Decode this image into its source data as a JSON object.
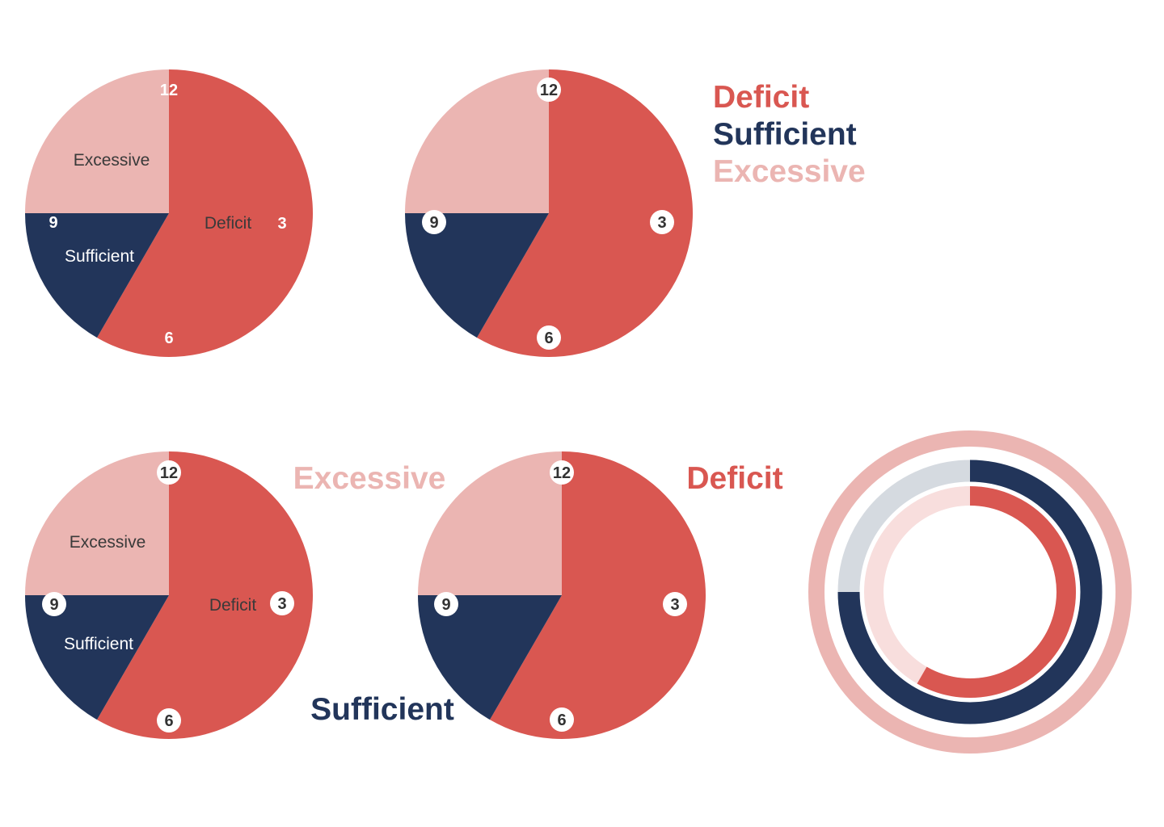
{
  "colors": {
    "deficit": "#D95751",
    "sufficient": "#22355A",
    "excessive": "#EBB5B2",
    "track_light": "#D5DAE0",
    "track_pink": "#F8DEDD",
    "label_dark": "#3A3A3A",
    "label_light": "#FFFFFF",
    "badge_bg": "#FFFFFF",
    "badge_text": "#333333"
  },
  "legend": {
    "deficit": "Deficit",
    "sufficient": "Sufficient",
    "excessive": "Excessive"
  },
  "clock_labels": [
    "12",
    "3",
    "6",
    "9"
  ],
  "chart_data": [
    {
      "type": "pie",
      "variant": "clock face with inside labels, plain clock numbers",
      "slices": [
        {
          "label": "Deficit",
          "start_hour": 0,
          "end_hour": 7
        },
        {
          "label": "Sufficient",
          "start_hour": 7,
          "end_hour": 9
        },
        {
          "label": "Excessive",
          "start_hour": 9,
          "end_hour": 12
        }
      ]
    },
    {
      "type": "pie",
      "variant": "clock face with badge numbers, legend at right",
      "slices": [
        {
          "label": "Deficit",
          "start_hour": 0,
          "end_hour": 7
        },
        {
          "label": "Sufficient",
          "start_hour": 7,
          "end_hour": 9
        },
        {
          "label": "Excessive",
          "start_hour": 9,
          "end_hour": 12
        }
      ]
    },
    {
      "type": "pie",
      "variant": "clock face with inside labels and badge numbers",
      "slices": [
        {
          "label": "Deficit",
          "start_hour": 0,
          "end_hour": 7
        },
        {
          "label": "Sufficient",
          "start_hour": 7,
          "end_hour": 9
        },
        {
          "label": "Excessive",
          "start_hour": 9,
          "end_hour": 12
        }
      ]
    },
    {
      "type": "pie",
      "variant": "clock face with badge numbers, callout labels around",
      "slices": [
        {
          "label": "Deficit",
          "start_hour": 0,
          "end_hour": 7
        },
        {
          "label": "Sufficient",
          "start_hour": 7,
          "end_hour": 9
        },
        {
          "label": "Excessive",
          "start_hour": 9,
          "end_hour": 12
        }
      ]
    },
    {
      "type": "donut",
      "variant": "concentric rings",
      "rings": [
        {
          "label": "Excessive",
          "start_hour": 0,
          "end_hour": 12
        },
        {
          "label": "Sufficient",
          "start_hour": 0,
          "end_hour": 9
        },
        {
          "label": "Deficit",
          "start_hour": 0,
          "end_hour": 7
        }
      ]
    }
  ]
}
